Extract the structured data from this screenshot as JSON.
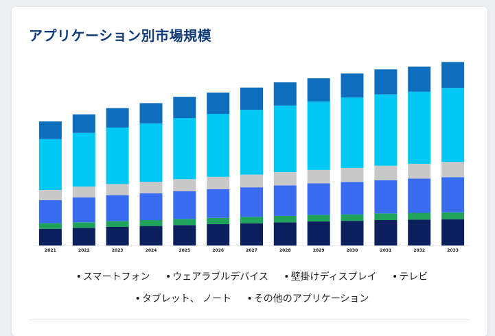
{
  "title": "アプリケーション別市場規模",
  "legend_bullet": "•",
  "legend": [
    "スマートフォン",
    "ウェアラブルデバイス",
    "壁掛けディスプレイ",
    "テレビ",
    "タブレット、 ノート",
    "その他のアプリケーション"
  ],
  "chart_data": {
    "type": "bar",
    "stacked": true,
    "categories": [
      "2021",
      "2022",
      "2023",
      "2024",
      "2025",
      "2026",
      "2027",
      "2028",
      "2029",
      "2030",
      "2031",
      "2032",
      "2033"
    ],
    "ylim": [
      0,
      100
    ],
    "grid": false,
    "legend_position": "bottom",
    "series": [
      {
        "name": "スマートフォン",
        "color": "#0a1f5c",
        "values": [
          9,
          9.5,
          10,
          10.5,
          11,
          11.5,
          12,
          12.5,
          13,
          13.3,
          13.7,
          14,
          14.2
        ]
      },
      {
        "name": "ウェアラブルデバイス",
        "color": "#1fa35a",
        "values": [
          3,
          3,
          3.2,
          3.2,
          3.3,
          3.4,
          3.4,
          3.5,
          3.5,
          3.5,
          3.6,
          3.6,
          3.7
        ]
      },
      {
        "name": "壁掛けディスプレイ",
        "color": "#3a6cf2",
        "values": [
          12.5,
          13.5,
          14,
          14.5,
          15,
          15.5,
          16,
          16.5,
          17,
          17.5,
          18,
          18.5,
          19
        ]
      },
      {
        "name": "テレビ",
        "color": "#c8c8c8",
        "values": [
          5.5,
          5.8,
          6,
          6.2,
          6.5,
          6.7,
          6.9,
          7.1,
          7.3,
          7.6,
          7.8,
          8,
          8.2
        ]
      },
      {
        "name": "タブレット、 ノート",
        "color": "#00c8f5",
        "values": [
          27.5,
          29,
          30.5,
          31.5,
          33,
          34,
          35,
          36,
          37,
          38,
          38.5,
          39,
          40
        ]
      },
      {
        "name": "その他のアプリケーション",
        "color": "#0e6ebd",
        "values": [
          9.5,
          10,
          10.5,
          11,
          11.5,
          11.5,
          12,
          12.5,
          12.5,
          13,
          13.5,
          13.5,
          14
        ]
      }
    ]
  }
}
